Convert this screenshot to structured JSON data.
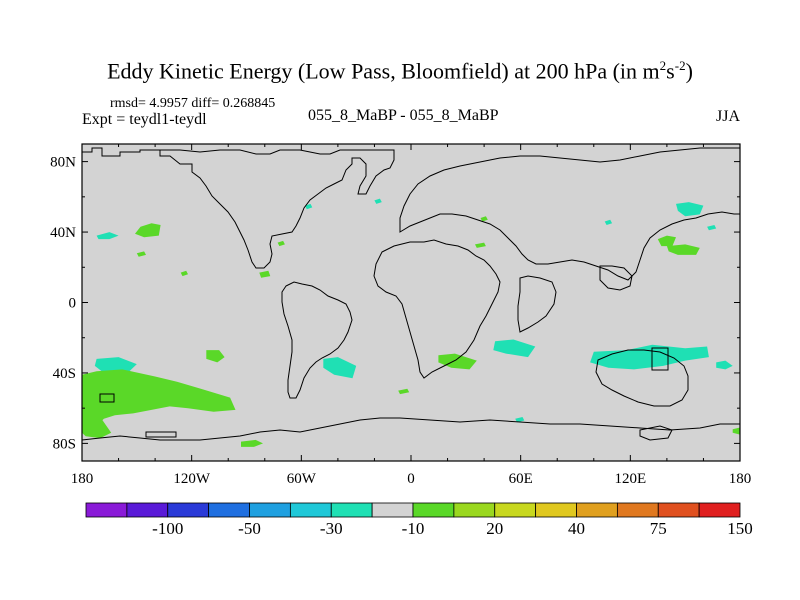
{
  "chart_data": {
    "type": "heatmap",
    "title": "Eddy Kinetic Energy (Low Pass, Bloomfield) at 200 hPa (in m",
    "title_unit_sup1": "2",
    "title_unit_mid": "s",
    "title_unit_sup2": "-2",
    "title_close": ")",
    "stats": "rmsd= 4.9957 diff= 0.268845",
    "experiment": "Expt = teydl1-teydl",
    "case": "055_8_MaBP - 055_8_MaBP",
    "season": "JJA",
    "xlim": [
      -180,
      180
    ],
    "ylim": [
      -90,
      90
    ],
    "x_ticks": [
      {
        "value": -180,
        "label": "180"
      },
      {
        "value": -120,
        "label": "120W"
      },
      {
        "value": -60,
        "label": "60W"
      },
      {
        "value": 0,
        "label": "0"
      },
      {
        "value": 60,
        "label": "60E"
      },
      {
        "value": 120,
        "label": "120E"
      },
      {
        "value": 180,
        "label": "180"
      }
    ],
    "y_ticks": [
      {
        "value": 80,
        "label": "80N"
      },
      {
        "value": 40,
        "label": "40N"
      },
      {
        "value": 0,
        "label": "0"
      },
      {
        "value": -40,
        "label": "40S"
      },
      {
        "value": -80,
        "label": "80S"
      }
    ],
    "colorbar": {
      "colors": [
        "#8a1ad8",
        "#5a1ad8",
        "#2a3ad8",
        "#1f6fe0",
        "#1fa0e0",
        "#1fc8d8",
        "#1fe0b4",
        "#d3d3d3",
        "#5ad828",
        "#9ad81f",
        "#c8d81f",
        "#e0c81f",
        "#e0a01f",
        "#e0781f",
        "#e0501f",
        "#e01f1f"
      ],
      "labels": [
        {
          "boundary": 2,
          "label": "-100"
        },
        {
          "boundary": 4,
          "label": "-50"
        },
        {
          "boundary": 6,
          "label": "-30"
        },
        {
          "boundary": 8,
          "label": "-10"
        },
        {
          "boundary": 10,
          "label": "20"
        },
        {
          "boundary": 12,
          "label": "40"
        },
        {
          "boundary": 14,
          "label": "75"
        },
        {
          "boundary": 16,
          "label": "150"
        }
      ]
    },
    "background_color": "#d3d3d3",
    "anomaly_regions": [
      {
        "name": "npac-west-pos",
        "color": "#5ad828",
        "pts": [
          [
            -148,
            43
          ],
          [
            -142,
            45
          ],
          [
            -137,
            44
          ],
          [
            -138,
            38
          ],
          [
            -146,
            37
          ],
          [
            -151,
            39
          ]
        ]
      },
      {
        "name": "npac-small-pos",
        "color": "#5ad828",
        "pts": [
          [
            -150,
            28
          ],
          [
            -146,
            29
          ],
          [
            -145,
            27
          ],
          [
            -149,
            26
          ]
        ]
      },
      {
        "name": "npac-west-neg",
        "color": "#1fe0b4",
        "pts": [
          [
            -172,
            38
          ],
          [
            -165,
            40
          ],
          [
            -160,
            38
          ],
          [
            -165,
            36
          ],
          [
            -171,
            36
          ]
        ]
      },
      {
        "name": "npac-east-small",
        "color": "#5ad828",
        "pts": [
          [
            -126,
            17
          ],
          [
            -123,
            18
          ],
          [
            -122,
            16
          ],
          [
            -125,
            15
          ]
        ]
      },
      {
        "name": "mexico-pos",
        "color": "#5ad828",
        "pts": [
          [
            -83,
            17
          ],
          [
            -78,
            18
          ],
          [
            -77,
            15
          ],
          [
            -82,
            14
          ]
        ]
      },
      {
        "name": "gulf-pos",
        "color": "#5ad828",
        "pts": [
          [
            -73,
            34
          ],
          [
            -70,
            35
          ],
          [
            -69,
            33
          ],
          [
            -72,
            32
          ]
        ]
      },
      {
        "name": "natl-neg-small",
        "color": "#1fe0b4",
        "pts": [
          [
            -58,
            55
          ],
          [
            -55,
            56
          ],
          [
            -54,
            54
          ],
          [
            -57,
            53
          ]
        ]
      },
      {
        "name": "natl-neg",
        "color": "#1fe0b4",
        "pts": [
          [
            -20,
            58
          ],
          [
            -17,
            59
          ],
          [
            -16,
            57
          ],
          [
            -19,
            56
          ]
        ]
      },
      {
        "name": "med-pos",
        "color": "#5ad828",
        "pts": [
          [
            38,
            48
          ],
          [
            41,
            49
          ],
          [
            42,
            47
          ],
          [
            39,
            46
          ]
        ]
      },
      {
        "name": "asia-pos",
        "color": "#5ad828",
        "pts": [
          [
            35,
            33
          ],
          [
            40,
            34
          ],
          [
            41,
            32
          ],
          [
            36,
            31
          ]
        ]
      },
      {
        "name": "japan-neg",
        "color": "#1fe0b4",
        "pts": [
          [
            145,
            56
          ],
          [
            152,
            57
          ],
          [
            160,
            55
          ],
          [
            158,
            50
          ],
          [
            150,
            49
          ],
          [
            146,
            52
          ]
        ]
      },
      {
        "name": "npac-neg-east",
        "color": "#1fe0b4",
        "pts": [
          [
            106,
            46
          ],
          [
            109,
            47
          ],
          [
            110,
            45
          ],
          [
            107,
            44
          ]
        ]
      },
      {
        "name": "japan-pos",
        "color": "#5ad828",
        "pts": [
          [
            135,
            36
          ],
          [
            140,
            38
          ],
          [
            145,
            37
          ],
          [
            143,
            32
          ],
          [
            137,
            32
          ]
        ]
      },
      {
        "name": "japan-pos2",
        "color": "#5ad828",
        "pts": [
          [
            140,
            32
          ],
          [
            150,
            33
          ],
          [
            158,
            31
          ],
          [
            156,
            27
          ],
          [
            146,
            27
          ],
          [
            141,
            29
          ]
        ]
      },
      {
        "name": "pac-neg-small",
        "color": "#1fe0b4",
        "pts": [
          [
            162,
            43
          ],
          [
            166,
            44
          ],
          [
            167,
            42
          ],
          [
            163,
            41
          ]
        ]
      },
      {
        "name": "indian-neg",
        "color": "#1fe0b4",
        "pts": [
          [
            46,
            -22
          ],
          [
            56,
            -21
          ],
          [
            68,
            -25
          ],
          [
            64,
            -31
          ],
          [
            52,
            -29
          ],
          [
            45,
            -27
          ]
        ]
      },
      {
        "name": "sa-pos",
        "color": "#5ad828",
        "pts": [
          [
            15,
            -30
          ],
          [
            24,
            -29
          ],
          [
            36,
            -33
          ],
          [
            32,
            -38
          ],
          [
            22,
            -37
          ],
          [
            15,
            -34
          ]
        ]
      },
      {
        "name": "satl-neg",
        "color": "#1fe0b4",
        "pts": [
          [
            -48,
            -32
          ],
          [
            -40,
            -31
          ],
          [
            -30,
            -36
          ],
          [
            -32,
            -43
          ],
          [
            -42,
            -41
          ],
          [
            -48,
            -37
          ]
        ]
      },
      {
        "name": "spac-neg",
        "color": "#1fe0b4",
        "pts": [
          [
            -172,
            -32
          ],
          [
            -160,
            -31
          ],
          [
            -150,
            -35
          ],
          [
            -155,
            -40
          ],
          [
            -168,
            -40
          ],
          [
            -173,
            -36
          ]
        ]
      },
      {
        "name": "spac-pos-mid",
        "color": "#5ad828",
        "pts": [
          [
            -112,
            -27
          ],
          [
            -105,
            -27
          ],
          [
            -102,
            -31
          ],
          [
            -106,
            -34
          ],
          [
            -112,
            -32
          ]
        ]
      },
      {
        "name": "spac-pos-big",
        "color": "#5ad828",
        "pts": [
          [
            -180,
            -41
          ],
          [
            -172,
            -39
          ],
          [
            -158,
            -38
          ],
          [
            -140,
            -42
          ],
          [
            -128,
            -45
          ],
          [
            -115,
            -49
          ],
          [
            -99,
            -54
          ],
          [
            -96,
            -61
          ],
          [
            -108,
            -62
          ],
          [
            -122,
            -60
          ],
          [
            -132,
            -59
          ],
          [
            -142,
            -61
          ],
          [
            -152,
            -63
          ],
          [
            -162,
            -64
          ],
          [
            -168,
            -66
          ],
          [
            -172,
            -70
          ],
          [
            -178,
            -70
          ],
          [
            -180,
            -66
          ]
        ]
      },
      {
        "name": "spac-pos-lower",
        "color": "#5ad828",
        "pts": [
          [
            -180,
            -66
          ],
          [
            -172,
            -62
          ],
          [
            -168,
            -68
          ],
          [
            -164,
            -74
          ],
          [
            -170,
            -77
          ],
          [
            -178,
            -76
          ],
          [
            -180,
            -74
          ]
        ]
      },
      {
        "name": "antarctic-pos",
        "color": "#5ad828",
        "pts": [
          [
            -93,
            -79
          ],
          [
            -85,
            -78
          ],
          [
            -81,
            -80
          ],
          [
            -86,
            -82
          ],
          [
            -93,
            -82
          ]
        ]
      },
      {
        "name": "satl-small-pos",
        "color": "#5ad828",
        "pts": [
          [
            -7,
            -50
          ],
          [
            -2,
            -49
          ],
          [
            -1,
            -51
          ],
          [
            -6,
            -52
          ]
        ]
      },
      {
        "name": "aus-neg",
        "color": "#1fe0b4",
        "pts": [
          [
            100,
            -28
          ],
          [
            118,
            -27
          ],
          [
            132,
            -24
          ],
          [
            150,
            -26
          ],
          [
            162,
            -25
          ],
          [
            163,
            -31
          ],
          [
            150,
            -33
          ],
          [
            138,
            -36
          ],
          [
            122,
            -38
          ],
          [
            108,
            -37
          ],
          [
            98,
            -34
          ]
        ]
      },
      {
        "name": "spac-neg-e",
        "color": "#1fe0b4",
        "pts": [
          [
            167,
            -34
          ],
          [
            172,
            -33
          ],
          [
            176,
            -36
          ],
          [
            172,
            -38
          ],
          [
            167,
            -37
          ]
        ]
      },
      {
        "name": "antarctic-neg",
        "color": "#1fe0b4",
        "pts": [
          [
            57,
            -66
          ],
          [
            61,
            -65
          ],
          [
            62,
            -67
          ],
          [
            58,
            -68
          ]
        ]
      },
      {
        "name": "dateline-pos",
        "color": "#5ad828",
        "pts": [
          [
            176,
            -72
          ],
          [
            180,
            -71
          ],
          [
            180,
            -75
          ],
          [
            176,
            -74
          ]
        ]
      }
    ]
  }
}
